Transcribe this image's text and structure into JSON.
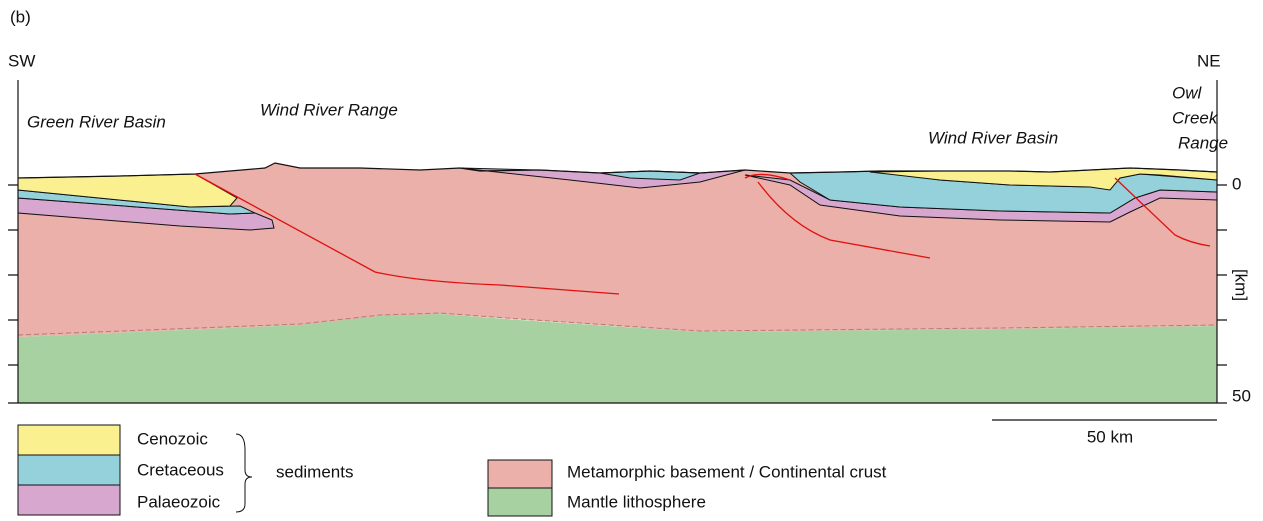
{
  "panel_label": "(b)",
  "directions": {
    "left": "SW",
    "right": "NE"
  },
  "regions": [
    "Green River Basin",
    "Wind River Range",
    "Wind River Basin",
    "Owl",
    "Creek",
    "Range"
  ],
  "depth_axis": {
    "top": "0",
    "bottom": "50",
    "unit": "[km]"
  },
  "scale_bar": "50 km",
  "legend": {
    "sediments": [
      "Cenozoic",
      "Cretaceous",
      "Palaeozoic"
    ],
    "group_label": "sediments",
    "other": [
      "Metamorphic basement / Continental crust",
      "Mantle lithosphere"
    ]
  }
}
